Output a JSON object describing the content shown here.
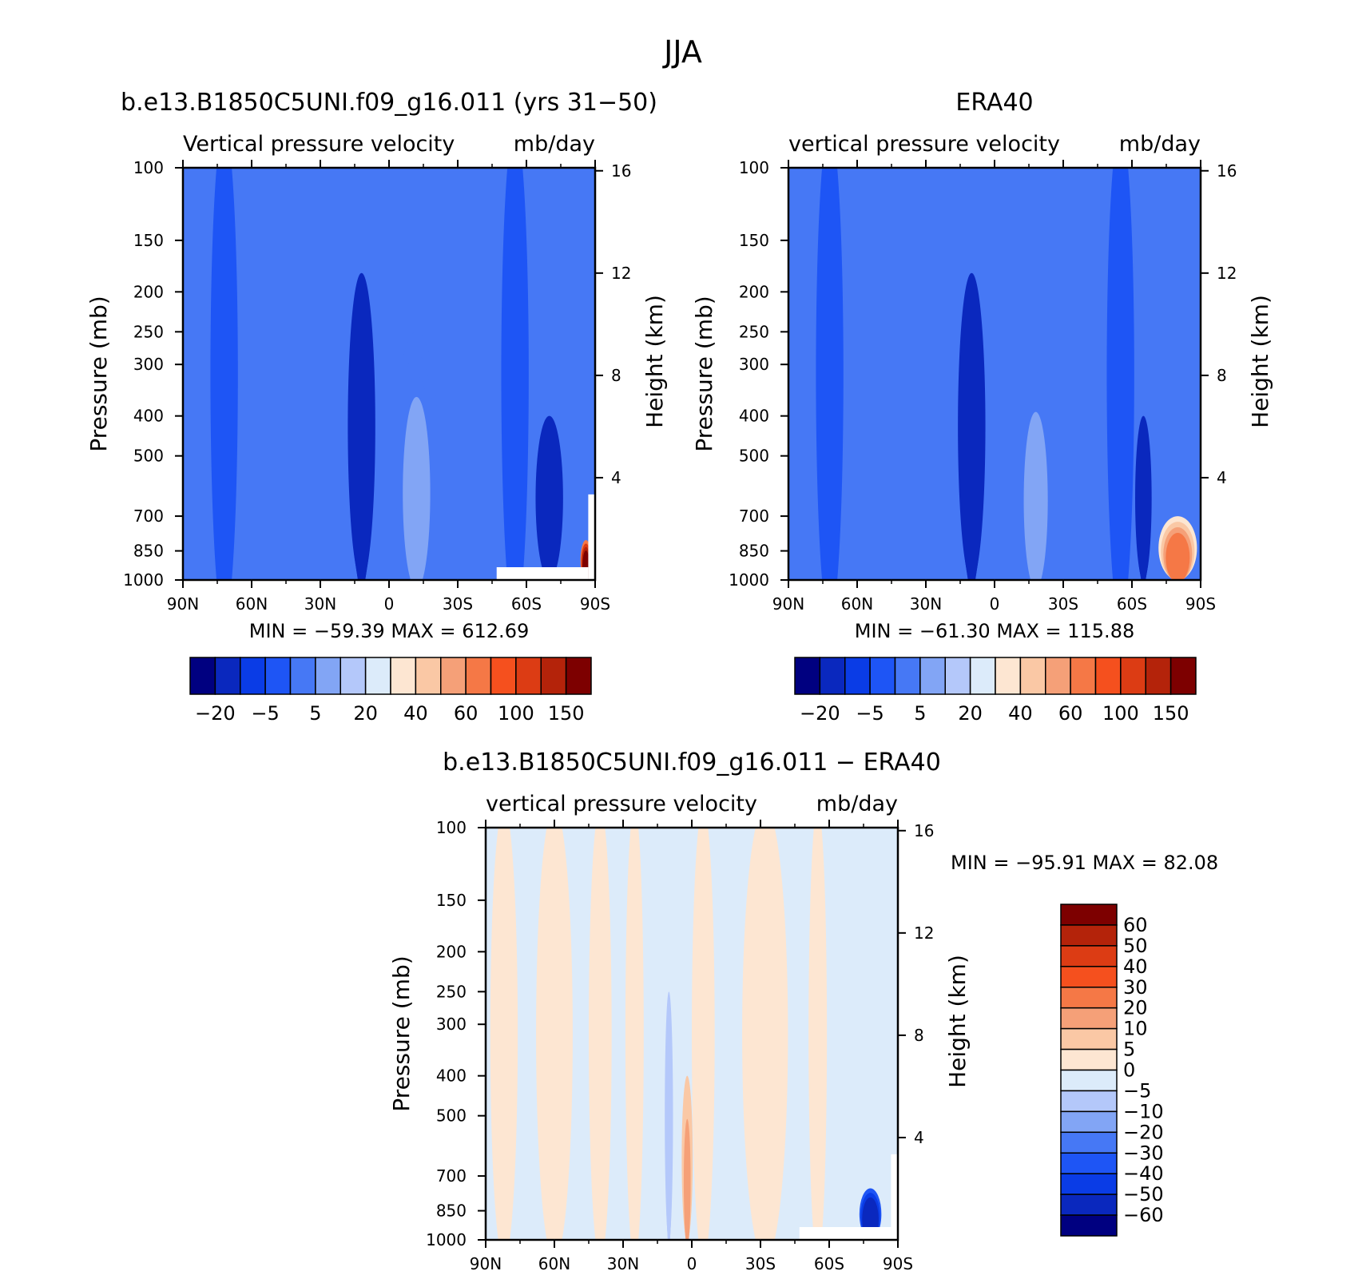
{
  "figure": {
    "title": "JJA"
  },
  "chart_data": [
    {
      "id": "model",
      "type": "heatmap",
      "title": "b.e13.B1850C5UNI.f09_g16.011 (yrs 31−50)",
      "subtitle_left": "Vertical pressure velocity",
      "subtitle_right": "mb/day",
      "ylabel": "Pressure (mb)",
      "ylabel_right": "Height (km)",
      "x_ticks": [
        "90N",
        "60N",
        "30N",
        "0",
        "30S",
        "60S",
        "90S"
      ],
      "x_range": [
        90,
        -90
      ],
      "y_ticks": [
        1000,
        850,
        700,
        500,
        400,
        300,
        250,
        200,
        150,
        100
      ],
      "y_range": [
        1000,
        100
      ],
      "y_scale": "log",
      "height_ticks": [
        4,
        8,
        12,
        16
      ],
      "stats": "MIN = −59.39   MAX = 612.69",
      "colorbar": {
        "orientation": "horizontal",
        "levels": [
          -20,
          -10,
          -5,
          0,
          5,
          10,
          20,
          30,
          40,
          50,
          60,
          80,
          100,
          120,
          150
        ],
        "labels": [
          "−20",
          "−5",
          "5",
          "20",
          "40",
          "60",
          "100",
          "150"
        ],
        "colors": [
          "#000080",
          "#0a28be",
          "#0a3ce6",
          "#1e55f5",
          "#4678f5",
          "#82a5f5",
          "#b4c8fa",
          "#dcebfa",
          "#fde6d2",
          "#fac8a5",
          "#f5a078",
          "#f57846",
          "#f5501e",
          "#dc3c14",
          "#b4230a",
          "#7d0000"
        ]
      },
      "features": [
        {
          "lat": 12,
          "width": 10,
          "min_p": 180,
          "value": -20
        },
        {
          "lat": -12,
          "width": 16,
          "min_p": 250,
          "value": 5
        },
        {
          "lat": -70,
          "width": 10,
          "min_p": 400,
          "value": -20
        },
        {
          "lat": -86,
          "width": 4,
          "min_p": 800,
          "value": 150
        }
      ]
    },
    {
      "id": "obs",
      "type": "heatmap",
      "title": "ERA40",
      "subtitle_left": "vertical pressure velocity",
      "subtitle_right": "mb/day",
      "ylabel": "Pressure (mb)",
      "ylabel_right": "Height (km)",
      "x_ticks": [
        "90N",
        "60N",
        "30N",
        "0",
        "30S",
        "60S",
        "90S"
      ],
      "x_range": [
        90,
        -90
      ],
      "y_ticks": [
        1000,
        850,
        700,
        500,
        400,
        300,
        250,
        200,
        150,
        100
      ],
      "y_range": [
        1000,
        100
      ],
      "y_scale": "log",
      "height_ticks": [
        4,
        8,
        12,
        16
      ],
      "stats": "MIN = −61.30   MAX = 115.88",
      "colorbar": {
        "orientation": "horizontal",
        "levels": [
          -20,
          -10,
          -5,
          0,
          5,
          10,
          20,
          30,
          40,
          50,
          60,
          80,
          100,
          120,
          150
        ],
        "labels": [
          "−20",
          "−5",
          "5",
          "20",
          "40",
          "60",
          "100",
          "150"
        ],
        "colors": [
          "#000080",
          "#0a28be",
          "#0a3ce6",
          "#1e55f5",
          "#4678f5",
          "#82a5f5",
          "#b4c8fa",
          "#dcebfa",
          "#fde6d2",
          "#fac8a5",
          "#f5a078",
          "#f57846",
          "#f5501e",
          "#dc3c14",
          "#b4230a",
          "#7d0000"
        ]
      },
      "features": [
        {
          "lat": 10,
          "width": 10,
          "min_p": 180,
          "value": -20
        },
        {
          "lat": -18,
          "width": 14,
          "min_p": 280,
          "value": 5
        },
        {
          "lat": -65,
          "width": 6,
          "min_p": 400,
          "value": -20
        },
        {
          "lat": -80,
          "width": 14,
          "min_p": 700,
          "value": 60
        }
      ]
    },
    {
      "id": "diff",
      "type": "heatmap",
      "title": "b.e13.B1850C5UNI.f09_g16.011 − ERA40",
      "subtitle_left": "vertical pressure velocity",
      "subtitle_right": "mb/day",
      "ylabel": "Pressure (mb)",
      "ylabel_right": "Height (km)",
      "x_ticks": [
        "90N",
        "60N",
        "30N",
        "0",
        "30S",
        "60S",
        "90S"
      ],
      "x_range": [
        90,
        -90
      ],
      "y_ticks": [
        1000,
        850,
        700,
        500,
        400,
        300,
        250,
        200,
        150,
        100
      ],
      "y_range": [
        1000,
        100
      ],
      "y_scale": "log",
      "height_ticks": [
        4,
        8,
        12,
        16
      ],
      "stats": "MIN = −95.91   MAX =  82.08",
      "colorbar": {
        "orientation": "vertical",
        "levels": [
          -60,
          -50,
          -40,
          -30,
          -20,
          -10,
          -5,
          0,
          5,
          10,
          20,
          30,
          40,
          50,
          60
        ],
        "labels": [
          "−60",
          "−50",
          "−40",
          "−30",
          "−20",
          "−10",
          "−5",
          "0",
          "5",
          "10",
          "20",
          "30",
          "40",
          "50",
          "60"
        ],
        "colors": [
          "#000080",
          "#0a28be",
          "#0a3ce6",
          "#1e55f5",
          "#4678f5",
          "#82a5f5",
          "#b4c8fa",
          "#dcebfa",
          "#fde6d2",
          "#fac8a5",
          "#f5a078",
          "#f57846",
          "#f5501e",
          "#dc3c14",
          "#b4230a",
          "#7d0000"
        ]
      },
      "features": [
        {
          "lat": 2,
          "width": 4,
          "min_p": 400,
          "value": 10
        },
        {
          "lat": 10,
          "width": 3,
          "min_p": 250,
          "value": -10
        },
        {
          "lat": -78,
          "width": 8,
          "min_p": 750,
          "value": -60
        }
      ]
    }
  ]
}
